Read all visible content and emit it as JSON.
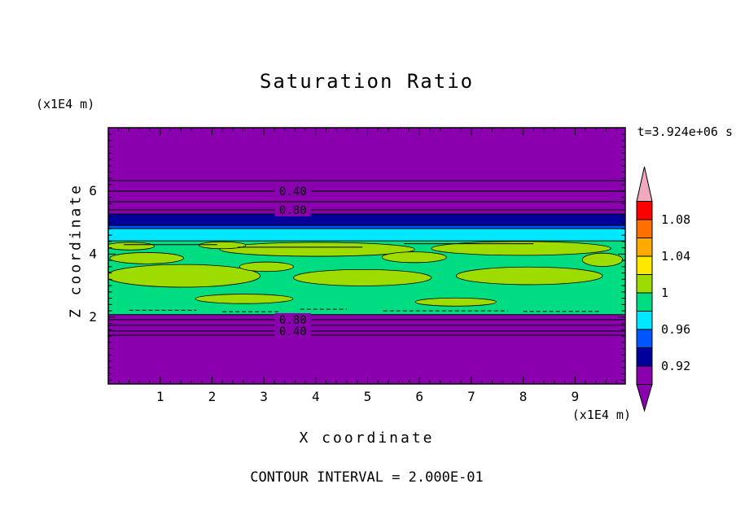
{
  "title": "Saturation Ratio",
  "timestamp": "t=3.924e+06 s",
  "y_axis_unit": "(x1E4 m)",
  "x_axis_unit": "(x1E4 m)",
  "y_label": "Z coordinate",
  "x_label": "X coordinate",
  "footer": "CONTOUR INTERVAL = 2.000E-01",
  "x_ticks": [
    "1",
    "2",
    "3",
    "4",
    "5",
    "6",
    "7",
    "8",
    "9"
  ],
  "y_ticks": [
    "2",
    "4",
    "6"
  ],
  "colorbar": {
    "labels": [
      "1.08",
      "1.04",
      "1",
      "0.96",
      "0.92"
    ],
    "over_color": "#F0A8BE",
    "under_color": "#8A00AE",
    "segments": [
      {
        "color": "#FF0000",
        "range": [
          1.08,
          1.1
        ]
      },
      {
        "color": "#FF7000",
        "range": [
          1.06,
          1.08
        ]
      },
      {
        "color": "#FFAA00",
        "range": [
          1.04,
          1.06
        ]
      },
      {
        "color": "#FFE800",
        "range": [
          1.02,
          1.04
        ]
      },
      {
        "color": "#9EDC00",
        "range": [
          1.0,
          1.02
        ]
      },
      {
        "color": "#00DC82",
        "range": [
          0.98,
          1.0
        ]
      },
      {
        "color": "#00E8FF",
        "range": [
          0.96,
          0.98
        ]
      },
      {
        "color": "#0055FF",
        "range": [
          0.94,
          0.96
        ]
      },
      {
        "color": "#00009B",
        "range": [
          0.92,
          0.94
        ]
      },
      {
        "color": "#8A00AE",
        "range": [
          0.9,
          0.92
        ]
      }
    ]
  },
  "chart_data": {
    "type": "heatmap",
    "title": "Saturation Ratio",
    "xlabel": "X coordinate (x1E4 m)",
    "ylabel": "Z coordinate (x1E4 m)",
    "xlim": [
      0,
      9.97
    ],
    "ylim": [
      -0.12,
      8.01
    ],
    "x_ticks": [
      1,
      2,
      3,
      4,
      5,
      6,
      7,
      8,
      9
    ],
    "z_ticks": [
      2,
      4,
      6
    ],
    "contour_interval": 0.2,
    "time_annotation": "t=3.924e+06 s",
    "background": {
      "color": "#8A00AE",
      "value_range": [
        0.2,
        0.92
      ]
    },
    "bands": [
      {
        "color": "#00009B",
        "z": [
          4.91,
          5.27
        ],
        "value_range": [
          0.92,
          0.94
        ]
      },
      {
        "color": "#0055FF",
        "z": [
          4.81,
          4.91
        ],
        "value_range": [
          0.94,
          0.96
        ]
      },
      {
        "color": "#00E8FF",
        "z": [
          4.42,
          4.81
        ],
        "value_range": [
          0.96,
          0.98
        ]
      },
      {
        "color": "#00DC82",
        "z": [
          2.08,
          4.42
        ],
        "value_range": [
          0.98,
          1.0
        ]
      }
    ],
    "high_patches": {
      "color": "#9EDC00",
      "value_range": [
        1.0,
        1.02
      ],
      "ellipses": [
        [
          1.44,
          3.31,
          1.49,
          0.36
        ],
        [
          0.74,
          3.87,
          0.71,
          0.18
        ],
        [
          4.03,
          4.15,
          1.88,
          0.22
        ],
        [
          4.9,
          3.25,
          1.33,
          0.26
        ],
        [
          7.96,
          4.18,
          1.73,
          0.22
        ],
        [
          8.12,
          3.31,
          1.41,
          0.28
        ],
        [
          2.62,
          2.58,
          0.94,
          0.15
        ],
        [
          6.7,
          2.48,
          0.78,
          0.13
        ],
        [
          0.42,
          4.25,
          0.47,
          0.12
        ],
        [
          9.53,
          3.82,
          0.39,
          0.21
        ],
        [
          3.05,
          3.6,
          0.52,
          0.15
        ],
        [
          5.9,
          3.9,
          0.62,
          0.17
        ],
        [
          2.2,
          4.28,
          0.45,
          0.11
        ]
      ]
    },
    "contour_lines": [
      {
        "z": 6.33,
        "value": 0.2
      },
      {
        "z": 6.0,
        "value": 0.4
      },
      {
        "z": 5.66,
        "value": 0.6
      },
      {
        "z": 5.4,
        "value": 0.8
      },
      {
        "z": 1.92,
        "value": 0.8
      },
      {
        "z": 1.74,
        "value": 0.6
      },
      {
        "z": 1.56,
        "value": 0.4
      },
      {
        "z": 1.43,
        "value": 0.2
      }
    ],
    "line_segments": [
      [
        0.3,
        2.1,
        4.3
      ],
      [
        2.5,
        4.9,
        4.22
      ],
      [
        5.7,
        8.2,
        4.33
      ],
      [
        0.4,
        1.7,
        2.22
      ],
      [
        2.2,
        3.3,
        2.17
      ],
      [
        3.7,
        4.6,
        2.25
      ],
      [
        5.3,
        7.7,
        2.2
      ],
      [
        8.0,
        9.5,
        2.18
      ]
    ],
    "contour_labels": [
      {
        "text": "0.40",
        "x": 3.56,
        "z": 6.0
      },
      {
        "text": "0.80",
        "x": 3.56,
        "z": 5.4
      },
      {
        "text": "0.80",
        "x": 3.56,
        "z": 1.92
      },
      {
        "text": "0.40",
        "x": 3.56,
        "z": 1.56
      }
    ]
  }
}
